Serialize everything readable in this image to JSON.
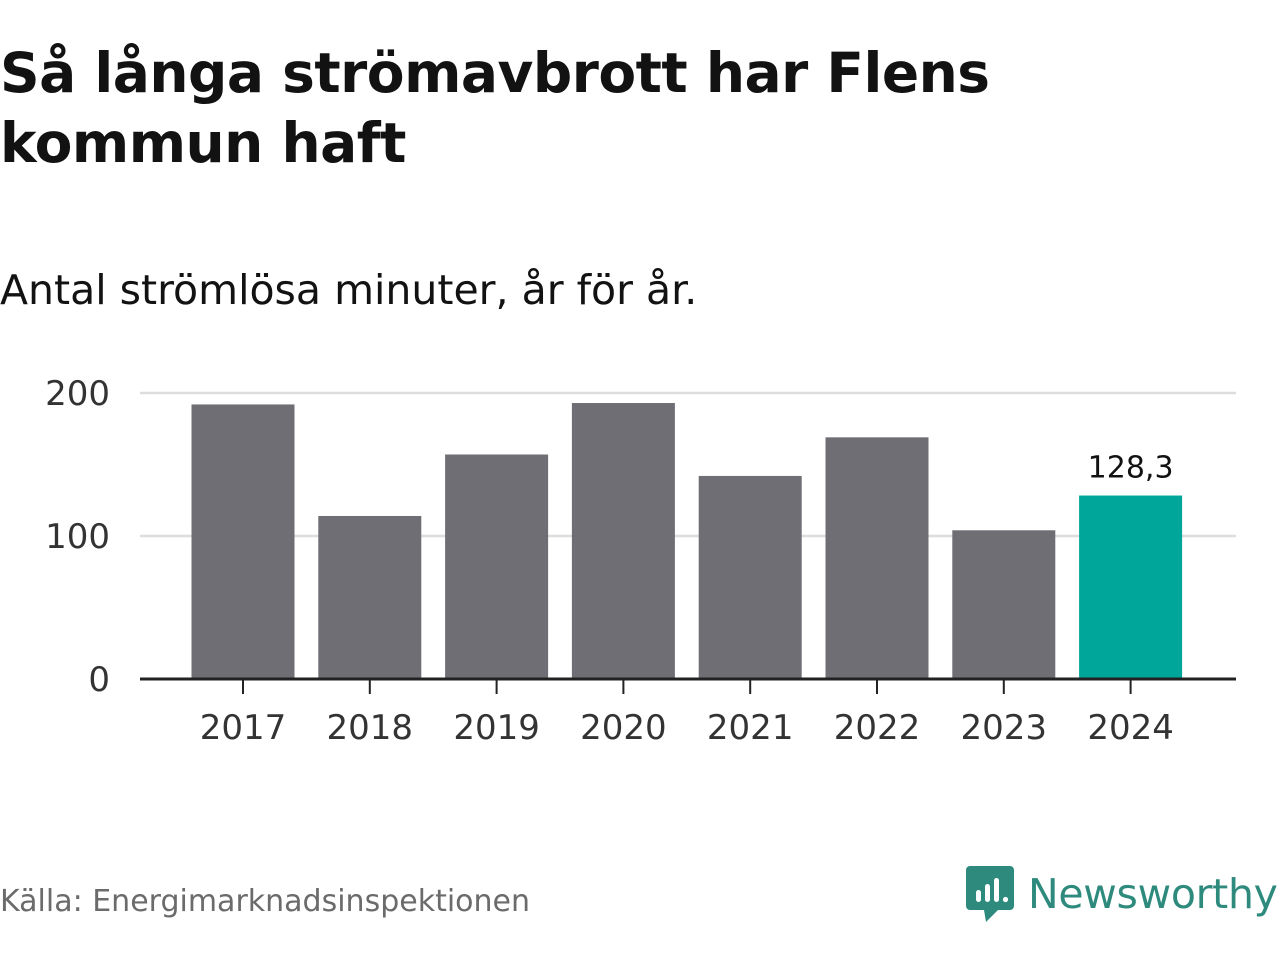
{
  "header": {
    "title": "Så långa strömavbrott har Flens kommun haft",
    "subtitle": "Antal strömlösa minuter, år för år."
  },
  "footer": {
    "source": "Källa: Energimarknadsinspektionen",
    "brand": "Newsworthy"
  },
  "colors": {
    "bar_default": "#6f6e74",
    "bar_highlight": "#00a699",
    "brand": "#2e8a7d",
    "gridline": "#dddddd",
    "axis": "#222222"
  },
  "icons": {
    "brand_logo": "newsworthy-chart-bubble-icon"
  },
  "chart_data": {
    "type": "bar",
    "categories": [
      "2017",
      "2018",
      "2019",
      "2020",
      "2021",
      "2022",
      "2023",
      "2024"
    ],
    "values": [
      192,
      114,
      157,
      193,
      142,
      169,
      104,
      128.3
    ],
    "highlight_index": 7,
    "data_labels": [
      null,
      null,
      null,
      null,
      null,
      null,
      null,
      "128,3"
    ],
    "yticks": [
      0,
      100,
      200
    ],
    "ytick_labels": [
      "0",
      "100",
      "200"
    ],
    "ylim": [
      0,
      200
    ],
    "grid": true
  }
}
